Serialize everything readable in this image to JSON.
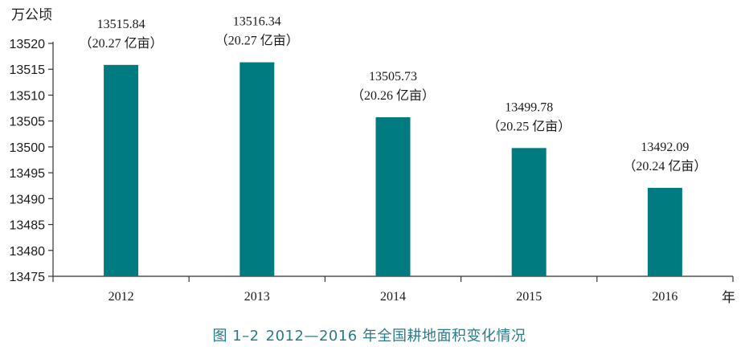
{
  "caption": {
    "number": "图 1–2",
    "title": "2012—2016 年全国耕地面积变化情况"
  },
  "colors": {
    "bar": "#007b7f",
    "caption": "#2a7b88"
  },
  "chart_data": {
    "type": "bar",
    "title": "",
    "ylabel": "万公顷",
    "xlabel": "年",
    "ylim": [
      13475,
      13520
    ],
    "yticks": [
      13475,
      13480,
      13485,
      13490,
      13495,
      13500,
      13505,
      13510,
      13515,
      13520
    ],
    "categories": [
      "2012",
      "2013",
      "2014",
      "2015",
      "2016"
    ],
    "values": [
      13515.84,
      13516.34,
      13505.73,
      13499.78,
      13492.09
    ],
    "value_labels": [
      "13515.84",
      "13516.34",
      "13505.73",
      "13499.78",
      "13492.09"
    ],
    "secondary_labels": [
      "（20.27 亿亩）",
      "（20.27 亿亩）",
      "（20.26 亿亩）",
      "（20.25 亿亩）",
      "（20.24 亿亩）"
    ],
    "grid": false,
    "legend": "none"
  }
}
